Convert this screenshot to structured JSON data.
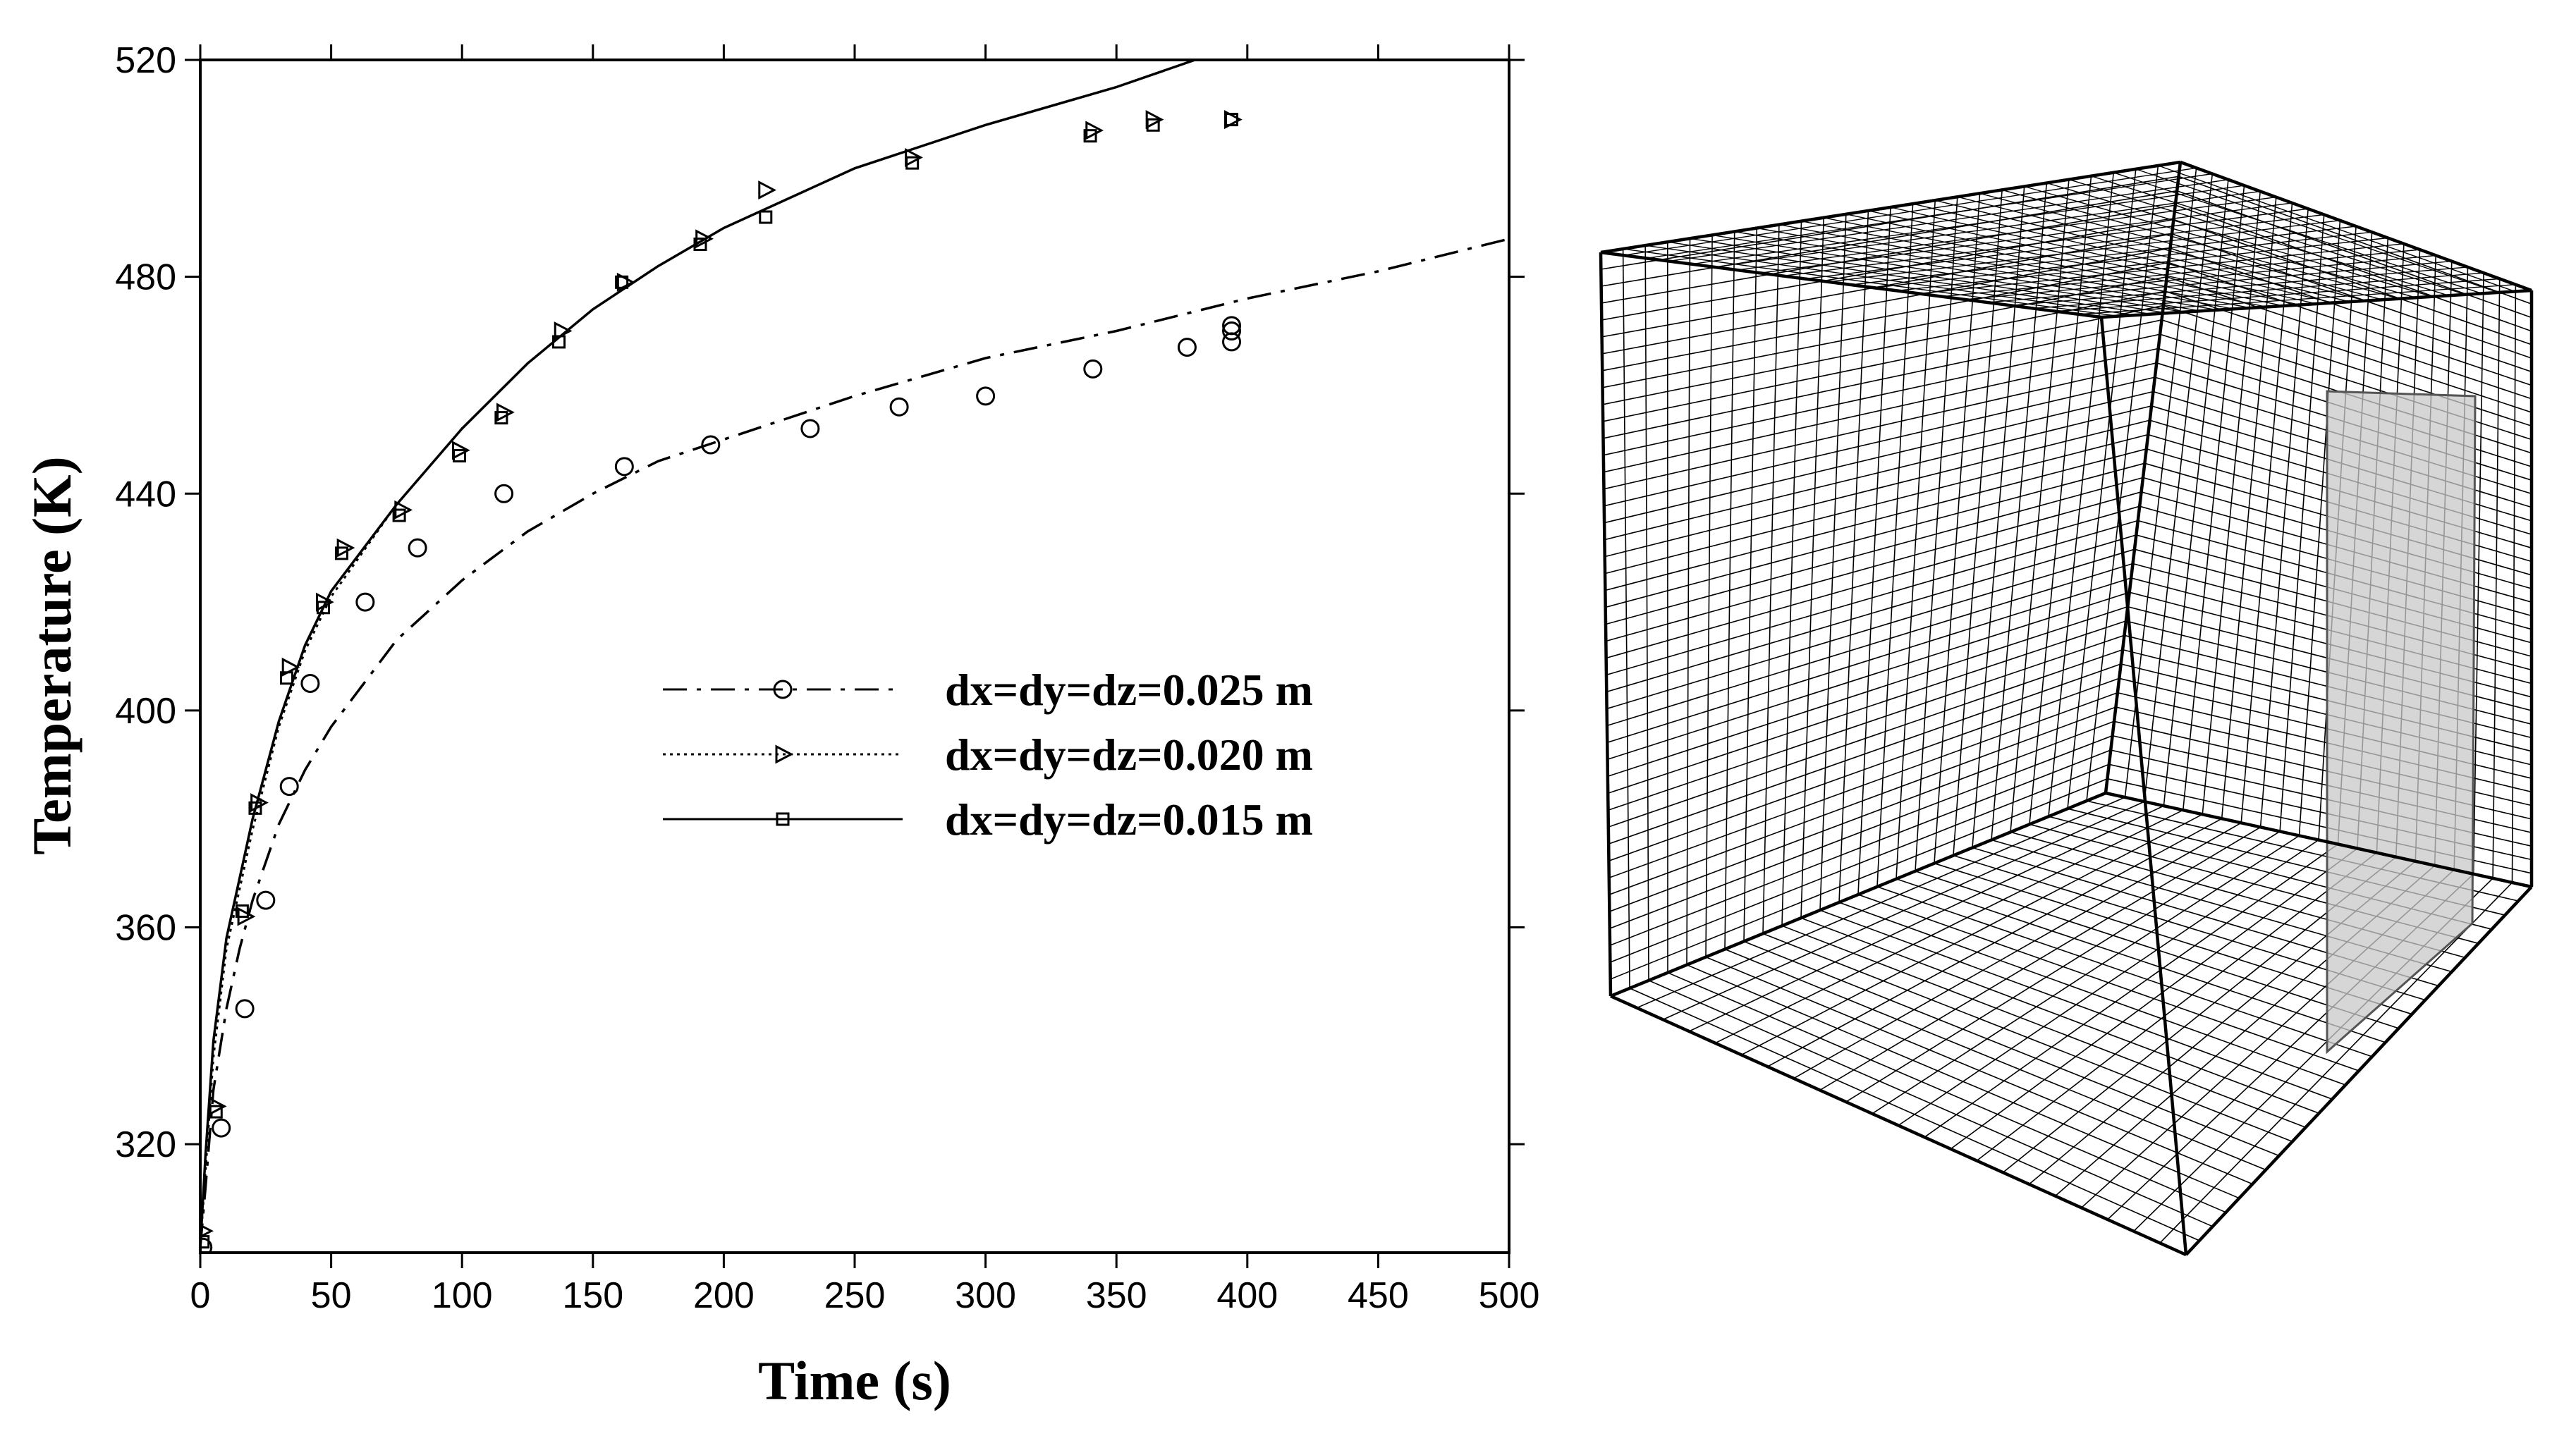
{
  "chart_data": [
    {
      "type": "line",
      "xlabel": "Time (s)",
      "ylabel": "Temperature (K)",
      "xlim": [
        0,
        500
      ],
      "ylim": [
        300,
        520
      ],
      "xticks": [
        "0",
        "50",
        "100",
        "150",
        "200",
        "250",
        "300",
        "350",
        "400",
        "450",
        "500"
      ],
      "yticks": [
        "320",
        "360",
        "400",
        "440",
        "480",
        "520"
      ],
      "grid": false,
      "legend_position": "center-right",
      "series": [
        {
          "name": "dx=dy=dz=0.025 m",
          "line_style": "dash-dot",
          "marker": "circle",
          "curve": [
            [
              0,
              301
            ],
            [
              2,
              312
            ],
            [
              5,
              330
            ],
            [
              10,
              345
            ],
            [
              15,
              356
            ],
            [
              20,
              365
            ],
            [
              30,
              379
            ],
            [
              40,
              389
            ],
            [
              50,
              397
            ],
            [
              75,
              413
            ],
            [
              100,
              424
            ],
            [
              125,
              433
            ],
            [
              150,
              440
            ],
            [
              175,
              446
            ],
            [
              200,
              450
            ],
            [
              250,
              458
            ],
            [
              300,
              465
            ],
            [
              350,
              470
            ],
            [
              400,
              476
            ],
            [
              450,
              481
            ],
            [
              500,
              487
            ]
          ],
          "points": [
            [
              1,
              301
            ],
            [
              8,
              323
            ],
            [
              17,
              345
            ],
            [
              25,
              365
            ],
            [
              34,
              386
            ],
            [
              42,
              405
            ],
            [
              63,
              420
            ],
            [
              83,
              430
            ],
            [
              116,
              440
            ],
            [
              162,
              445
            ],
            [
              195,
              449
            ],
            [
              233,
              452
            ],
            [
              267,
              456
            ],
            [
              300,
              458
            ],
            [
              341,
              463
            ],
            [
              377,
              467
            ],
            [
              394,
              468
            ],
            [
              394,
              470
            ],
            [
              394,
              471
            ]
          ]
        },
        {
          "name": "dx=dy=dz=0.020 m",
          "line_style": "dotted",
          "marker": "triangle-right",
          "curve": [
            [
              0,
              301
            ],
            [
              2,
              315
            ],
            [
              5,
              336
            ],
            [
              10,
              356
            ],
            [
              15,
              367
            ],
            [
              20,
              378
            ],
            [
              30,
              397
            ],
            [
              40,
              411
            ],
            [
              50,
              421
            ],
            [
              75,
              438
            ],
            [
              100,
              452
            ],
            [
              125,
              464
            ],
            [
              150,
              474
            ],
            [
              175,
              482
            ],
            [
              200,
              489
            ],
            [
              250,
              500
            ],
            [
              300,
              508
            ],
            [
              350,
              515
            ],
            [
              380,
              520
            ]
          ],
          "points": [
            [
              1,
              304
            ],
            [
              6,
              327
            ],
            [
              17,
              362
            ],
            [
              22,
              383
            ],
            [
              34,
              408
            ],
            [
              47,
              420
            ],
            [
              55,
              430
            ],
            [
              77,
              437
            ],
            [
              99,
              448
            ],
            [
              116,
              455
            ],
            [
              138,
              470
            ],
            [
              162,
              479
            ],
            [
              192,
              487
            ],
            [
              216,
              496
            ],
            [
              272,
              502
            ],
            [
              341,
              507
            ],
            [
              364,
              509
            ],
            [
              394,
              509
            ]
          ]
        },
        {
          "name": "dx=dy=dz=0.015 m",
          "line_style": "solid",
          "marker": "square",
          "curve": [
            [
              0,
              301
            ],
            [
              2,
              318
            ],
            [
              5,
              339
            ],
            [
              10,
              358
            ],
            [
              15,
              369
            ],
            [
              20,
              380
            ],
            [
              30,
              398
            ],
            [
              40,
              412
            ],
            [
              50,
              422
            ],
            [
              75,
              438
            ],
            [
              100,
              452
            ],
            [
              125,
              464
            ],
            [
              150,
              474
            ],
            [
              175,
              482
            ],
            [
              200,
              489
            ],
            [
              250,
              500
            ],
            [
              300,
              508
            ],
            [
              350,
              515
            ],
            [
              380,
              520
            ]
          ],
          "points": [
            [
              1,
              302
            ],
            [
              6,
              326
            ],
            [
              16,
              363
            ],
            [
              21,
              382
            ],
            [
              33,
              406
            ],
            [
              47,
              419
            ],
            [
              54,
              429
            ],
            [
              76,
              436
            ],
            [
              99,
              447
            ],
            [
              115,
              454
            ],
            [
              137,
              468
            ],
            [
              161,
              479
            ],
            [
              191,
              486
            ],
            [
              216,
              491
            ],
            [
              272,
              501
            ],
            [
              340,
              506
            ],
            [
              364,
              508
            ],
            [
              394,
              509
            ]
          ]
        }
      ]
    }
  ],
  "mesh_view": {
    "description_type": "3d-grid-mesh",
    "colors": {
      "panel_fill": "#c8c8c8",
      "line": "#000000"
    }
  }
}
